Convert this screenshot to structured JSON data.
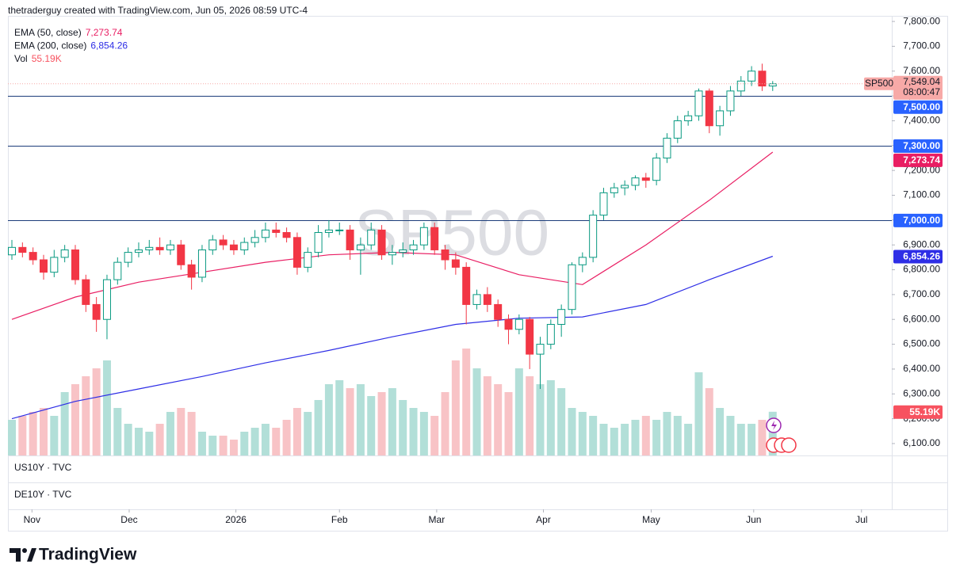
{
  "header": "thetraderguy created with TradingView.com, Jun 05, 2026 08:59 UTC-4",
  "chart_data": {
    "type": "candlestick",
    "watermark": "SP500",
    "up_color": "#089981",
    "down_color": "#f23645",
    "xlim": [
      -0.375,
      83.27
    ],
    "ylim": [
      6052,
      7829
    ],
    "grid": false,
    "xticks": [
      {
        "value": 1.9,
        "label": "Nov"
      },
      {
        "value": 11.1,
        "label": "Dec"
      },
      {
        "value": 21.2,
        "label": "2026"
      },
      {
        "value": 31,
        "label": "Feb"
      },
      {
        "value": 40.2,
        "label": "Mar"
      },
      {
        "value": 50.3,
        "label": "Apr"
      },
      {
        "value": 60.5,
        "label": "May"
      },
      {
        "value": 70.2,
        "label": "Jun"
      },
      {
        "value": 80.4,
        "label": "Jul"
      }
    ],
    "yticks": [
      {
        "value": 6100,
        "label": "6,100.00"
      },
      {
        "value": 6200,
        "label": "6,200.00"
      },
      {
        "value": 6300,
        "label": "6,300.00"
      },
      {
        "value": 6400,
        "label": "6,400.00"
      },
      {
        "value": 6500,
        "label": "6,500.00"
      },
      {
        "value": 6600,
        "label": "6,600.00"
      },
      {
        "value": 6700,
        "label": "6,700.00"
      },
      {
        "value": 6800,
        "label": "6,800.00"
      },
      {
        "value": 6900,
        "label": "6,900.00"
      },
      {
        "value": 7000,
        "label": "7,000.00"
      },
      {
        "value": 7100,
        "label": "7,100.00"
      },
      {
        "value": 7200,
        "label": "7,200.00"
      },
      {
        "value": 7300,
        "label": "7,300.00"
      },
      {
        "value": 7400,
        "label": "7,400.00"
      },
      {
        "value": 7500,
        "label": "7,500.00"
      },
      {
        "value": 7600,
        "label": "7,600.00"
      },
      {
        "value": 7700,
        "label": "7,700.00"
      },
      {
        "value": 7800,
        "label": "7,800.00"
      }
    ],
    "open": [
      6860,
      6890,
      6870,
      6840,
      6790,
      6850,
      6880,
      6760,
      6660,
      6600,
      6760,
      6830,
      6870,
      6880,
      6890,
      6880,
      6900,
      6820,
      6770,
      6880,
      6920,
      6900,
      6880,
      6910,
      6930,
      6960,
      6950,
      6930,
      6810,
      6870,
      6950,
      6960,
      6960,
      6880,
      6900,
      6960,
      6860,
      6870,
      6880,
      6900,
      6970,
      6880,
      6840,
      6810,
      6660,
      6700,
      6660,
      6600,
      6560,
      6600,
      6460,
      6500,
      6580,
      6640,
      6820,
      6850,
      7020,
      7110,
      7130,
      7140,
      7170,
      7160,
      7250,
      7330,
      7400,
      7420,
      7520,
      7380,
      7440,
      7520,
      7560,
      7600,
      7540
    ],
    "high": [
      6920,
      6910,
      6890,
      6860,
      6880,
      6900,
      6900,
      6780,
      6690,
      6780,
      6850,
      6890,
      6910,
      6920,
      6930,
      6920,
      6920,
      6840,
      6900,
      6940,
      6940,
      6920,
      6930,
      6960,
      6990,
      6990,
      6970,
      6950,
      6890,
      6980,
      7000,
      6990,
      6980,
      6930,
      6990,
      6980,
      6900,
      6910,
      6920,
      6990,
      6990,
      6900,
      6870,
      6830,
      6720,
      6730,
      6680,
      6620,
      6620,
      6610,
      6530,
      6600,
      6660,
      6830,
      6870,
      7040,
      7130,
      7150,
      7160,
      7180,
      7190,
      7270,
      7350,
      7420,
      7440,
      7530,
      7530,
      7460,
      7540,
      7580,
      7620,
      7630,
      7560
    ],
    "low": [
      6840,
      6850,
      6820,
      6760,
      6770,
      6830,
      6740,
      6630,
      6550,
      6520,
      6740,
      6810,
      6850,
      6860,
      6860,
      6860,
      6800,
      6720,
      6750,
      6860,
      6880,
      6860,
      6860,
      6890,
      6910,
      6930,
      6910,
      6780,
      6790,
      6850,
      6930,
      6940,
      6840,
      6780,
      6880,
      6840,
      6820,
      6850,
      6860,
      6880,
      6860,
      6800,
      6780,
      6580,
      6640,
      6630,
      6570,
      6500,
      6540,
      6400,
      6320,
      6480,
      6530,
      6620,
      6790,
      6830,
      7000,
      7090,
      7100,
      7120,
      7130,
      7140,
      7230,
      7310,
      7380,
      7400,
      7350,
      7340,
      7420,
      7500,
      7540,
      7520,
      7520
    ],
    "close": [
      6890,
      6870,
      6840,
      6790,
      6850,
      6880,
      6760,
      6660,
      6600,
      6760,
      6830,
      6870,
      6880,
      6890,
      6880,
      6900,
      6820,
      6770,
      6880,
      6920,
      6900,
      6880,
      6910,
      6930,
      6960,
      6950,
      6930,
      6810,
      6870,
      6950,
      6960,
      6960,
      6880,
      6900,
      6960,
      6860,
      6870,
      6880,
      6900,
      6970,
      6880,
      6840,
      6810,
      6660,
      6700,
      6660,
      6600,
      6560,
      6600,
      6460,
      6500,
      6580,
      6640,
      6820,
      6850,
      7020,
      7110,
      7130,
      7140,
      7170,
      7160,
      7250,
      7330,
      7400,
      7420,
      7520,
      7380,
      7440,
      7520,
      7560,
      7600,
      7540,
      7549.04
    ],
    "volume": {
      "name": "Vol",
      "vlim": [
        0,
        200
      ],
      "up_color": "#b2dfd8",
      "down_color": "#f8c3c6",
      "values": [
        45,
        50,
        55,
        60,
        50,
        80,
        90,
        100,
        110,
        120,
        60,
        40,
        35,
        30,
        40,
        55,
        60,
        55,
        30,
        25,
        25,
        20,
        30,
        35,
        40,
        35,
        45,
        60,
        55,
        70,
        90,
        95,
        85,
        90,
        75,
        80,
        85,
        70,
        60,
        55,
        50,
        80,
        120,
        135,
        110,
        100,
        90,
        80,
        110,
        100,
        90,
        95,
        85,
        60,
        55,
        50,
        40,
        35,
        40,
        45,
        50,
        45,
        55,
        50,
        40,
        105,
        85,
        60,
        50,
        40,
        40,
        45,
        55.19
      ],
      "last_label": "55.19K",
      "label_color": "#f7525f"
    },
    "ema": [
      {
        "name": "EMA (50, close)",
        "color": "#e91e63",
        "x": [
          0,
          6,
          12,
          18,
          24,
          30,
          36,
          42,
          48,
          54,
          60,
          66,
          72
        ],
        "values": [
          6600,
          6690,
          6750,
          6790,
          6830,
          6860,
          6870,
          6860,
          6780,
          6740,
          6900,
          7080,
          7273.74
        ],
        "last_label": "7,273.74"
      },
      {
        "name": "EMA (200, close)",
        "color": "#2e2ee6",
        "x": [
          0,
          6,
          12,
          18,
          24,
          30,
          36,
          42,
          48,
          54,
          60,
          66,
          72
        ],
        "values": [
          6200,
          6270,
          6320,
          6370,
          6425,
          6475,
          6530,
          6580,
          6605,
          6610,
          6660,
          6760,
          6854.26
        ],
        "last_label": "6,854.26"
      }
    ],
    "levels": [
      {
        "value": 7500,
        "label": "7,500.00"
      },
      {
        "value": 7300,
        "label": "7,300.00"
      },
      {
        "value": 7000,
        "label": "7,000.00"
      }
    ],
    "level_color": "#1c3d7a",
    "level_label_color": "#2962ff",
    "price_label": {
      "symbol": "SP500",
      "value": 7549.04,
      "label": "7,549.04",
      "countdown": "08:00:47",
      "color": "#f7a9a7"
    }
  },
  "panes": [
    "US10Y · TVC",
    "DE10Y · TVC"
  ],
  "logo": "TradingView"
}
